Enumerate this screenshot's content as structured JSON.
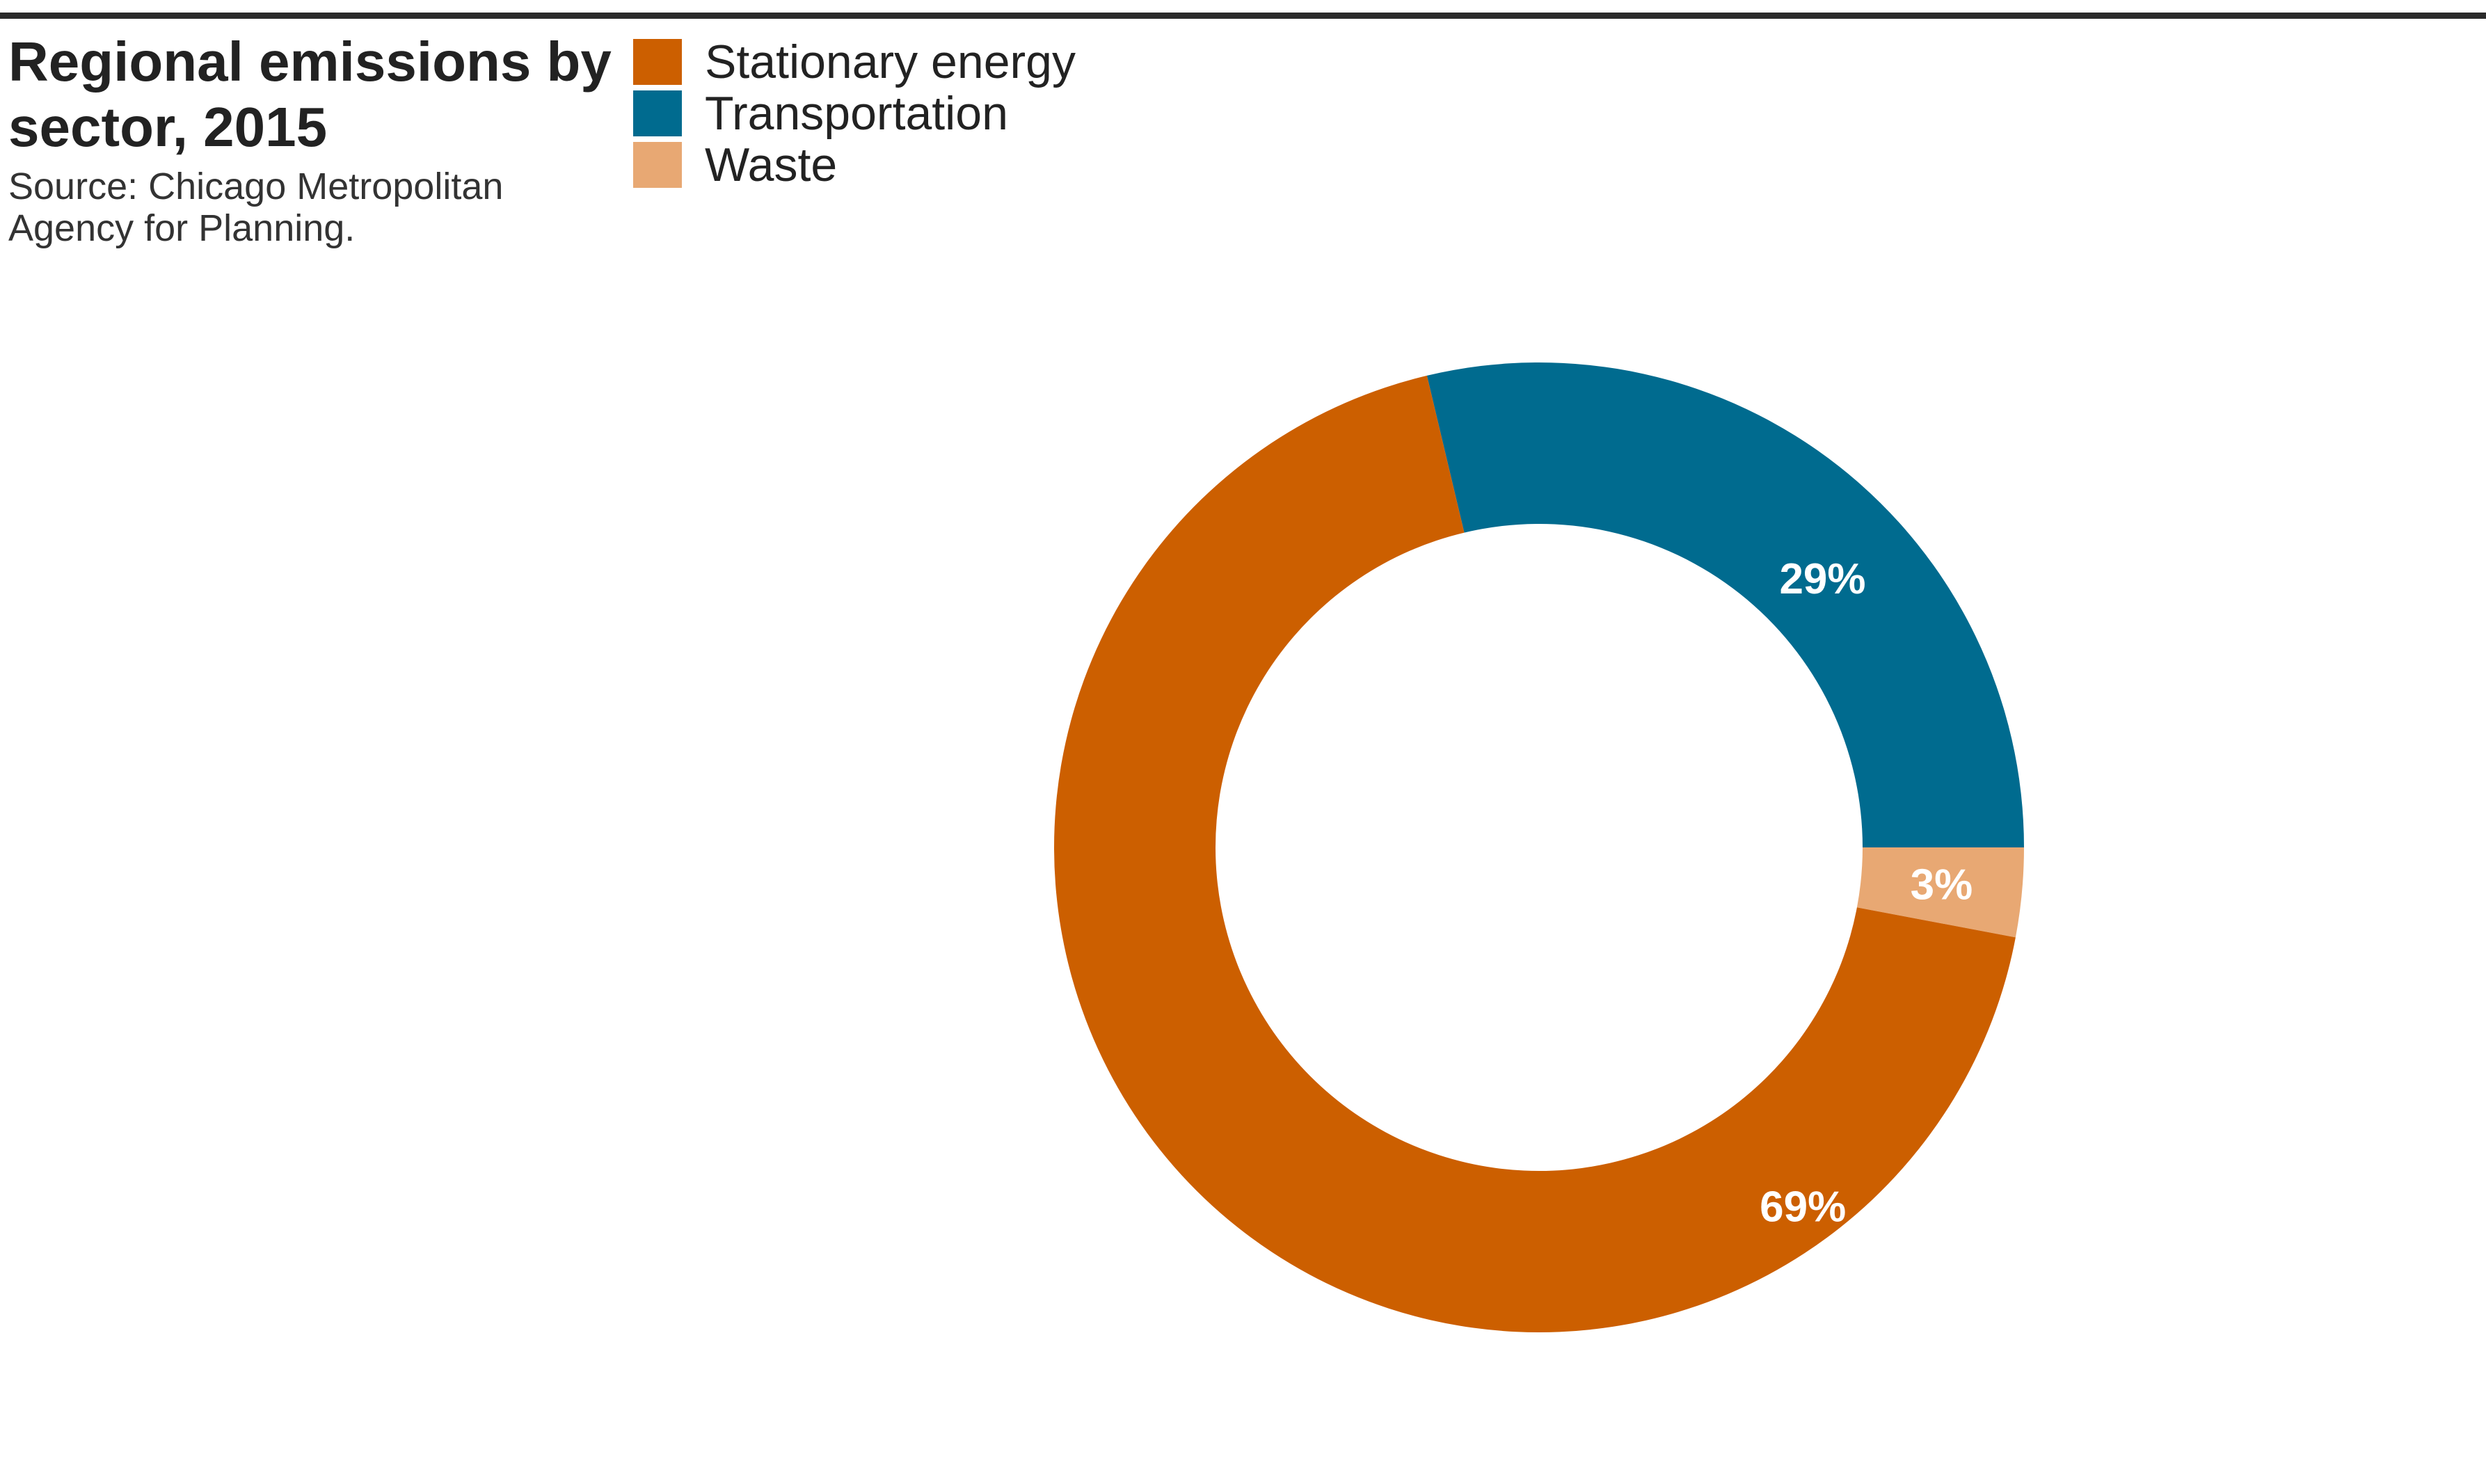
{
  "chart_data": {
    "type": "pie",
    "style": "donut",
    "title": "Regional emissions by sector, 2015",
    "source": "Source: Chicago Metropolitan Agency for Planning.",
    "legend_placement": "top",
    "categories": [
      "Stationary energy",
      "Transportation",
      "Waste"
    ],
    "values": [
      69,
      29,
      3
    ],
    "labels": [
      "69%",
      "29%",
      "3%"
    ],
    "colors": [
      "#cc5f00",
      "#006b8f",
      "#e8a873"
    ]
  }
}
